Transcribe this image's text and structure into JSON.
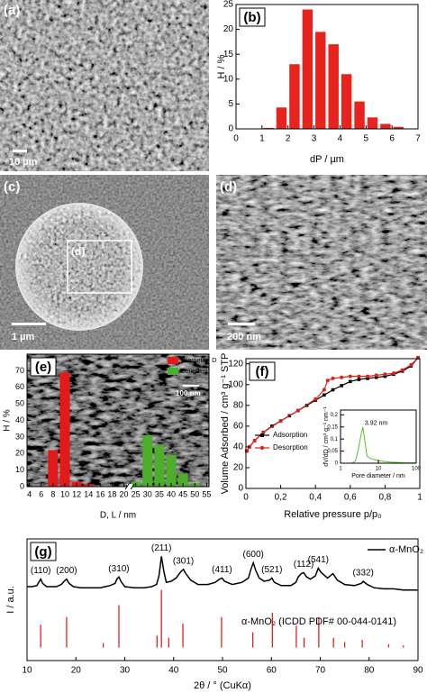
{
  "images": {
    "a": {
      "label": "(a)",
      "scale_bar": "10 µm"
    },
    "c": {
      "label": "(c)",
      "inset_label": "(d)",
      "scale_bar": "1 µm"
    },
    "d": {
      "label": "(d)",
      "scale_bar": "200 nm"
    },
    "e": {
      "scale_bar": "100 nm"
    }
  },
  "chart_data": [
    {
      "type": "histogram",
      "label": "(b)",
      "x_label": "dP / µm",
      "y_label": "H / %",
      "color": "#e8221c",
      "bins": [
        1,
        1.5,
        2,
        2.5,
        3,
        3.5,
        4,
        4.5,
        5,
        5.5,
        6,
        6.5,
        7
      ],
      "counts": [
        0.2,
        4.3,
        13,
        24,
        19.5,
        17,
        11,
        5.5,
        2.3,
        1,
        0.4,
        0
      ],
      "xlim": [
        0,
        7
      ],
      "xticks": [
        0,
        1,
        2,
        3,
        4,
        5,
        6,
        7
      ],
      "ylim": [
        0,
        25
      ],
      "yticks": [
        0,
        5,
        10,
        15,
        20,
        25
      ]
    },
    {
      "type": "bar",
      "label": "(e)",
      "x_label": "D, L / nm",
      "y_label": "H / %",
      "legend": "upper right",
      "x_break": [
        20,
        25
      ],
      "xlim": [
        3.6,
        56
      ],
      "xticks": [
        4,
        6,
        8,
        10,
        12,
        14,
        16,
        18,
        20,
        25,
        30,
        35,
        40,
        45,
        50,
        55
      ],
      "ylim": [
        0,
        80
      ],
      "yticks": [
        0,
        10,
        20,
        30,
        40,
        50,
        60,
        70
      ],
      "series": [
        {
          "name": "Diameter, D",
          "color": "#e31a1c",
          "x": [
            8,
            10,
            12,
            14
          ],
          "values": [
            22,
            69,
            3,
            1.5
          ]
        },
        {
          "name": "Length, L",
          "color": "#4cae2a",
          "x": [
            25,
            30,
            35,
            40,
            45,
            50
          ],
          "values": [
            3,
            31,
            25,
            19,
            8,
            2
          ]
        }
      ]
    },
    {
      "type": "line",
      "label": "(f)",
      "x_label": "Relative pressure p/p₀",
      "y_label": "Volume Adsorbed / cm³ g⁻¹ STP",
      "legend": "lower left",
      "xlim": [
        0,
        1
      ],
      "xticks": [
        0,
        {
          "value": 0.2,
          "label": "0,2"
        },
        {
          "value": 0.4,
          "label": "0,4"
        },
        {
          "value": 0.6,
          "label": "0,6"
        },
        {
          "value": 0.8,
          "label": "0,8"
        },
        1
      ],
      "ylim": [
        0,
        125
      ],
      "yticks": [
        0,
        20,
        40,
        60,
        80,
        100,
        120
      ],
      "series": [
        {
          "name": "Adsorption",
          "color": "#000000",
          "marker": "square",
          "x": [
            0.005,
            0.02,
            0.05,
            0.1,
            0.15,
            0.2,
            0.25,
            0.3,
            0.35,
            0.4,
            0.45,
            0.5,
            0.55,
            0.6,
            0.65,
            0.7,
            0.75,
            0.8,
            0.85,
            0.9,
            0.95,
            0.99
          ],
          "values": [
            36,
            40,
            46,
            54,
            60,
            65,
            70,
            75,
            80,
            85,
            90,
            95,
            99,
            103,
            105,
            106,
            107,
            108,
            110,
            113,
            118,
            126
          ]
        },
        {
          "name": "Desorption",
          "color": "#e0201b",
          "marker": "circle",
          "x": [
            0.99,
            0.95,
            0.9,
            0.85,
            0.8,
            0.75,
            0.7,
            0.65,
            0.6,
            0.55,
            0.5,
            0.47,
            0.45,
            0.4,
            0.3,
            0.2,
            0.1,
            0.05,
            0.02,
            0.005
          ],
          "values": [
            126,
            119,
            114,
            111,
            110,
            109,
            108,
            108,
            108,
            107,
            106,
            104,
            95,
            86,
            75,
            65,
            54,
            46,
            40,
            36
          ]
        }
      ]
    },
    {
      "type": "line",
      "x_label": "Pore diameter / nm",
      "y_label": "dV/dD / cm³ g⁻¹ nm⁻¹",
      "log_x": true,
      "xlim": [
        1,
        100
      ],
      "xticks": [
        1,
        10,
        100
      ],
      "ylim": [
        0,
        0.22
      ],
      "yticks": [
        0,
        {
          "value": 0.05,
          "label": "0,05"
        },
        {
          "value": 0.1,
          "label": "0,1"
        },
        {
          "value": 0.15,
          "label": "0,15"
        },
        {
          "value": 0.2,
          "label": "0,2"
        }
      ],
      "annotation": {
        "text": "3.92 nm",
        "x": 3.92
      },
      "series": [
        {
          "color": "#5cc02a",
          "x": [
            1.5,
            2,
            2.5,
            3,
            3.5,
            3.92,
            4.5,
            5,
            6,
            8,
            10,
            20,
            50,
            100
          ],
          "values": [
            0,
            0,
            0.01,
            0.06,
            0.12,
            0.15,
            0.08,
            0.03,
            0.02,
            0.015,
            0.01,
            0.005,
            0.002,
            0.001
          ]
        }
      ]
    },
    {
      "type": "xrd",
      "label": "(g)",
      "x_label": "2θ / ° (CuKα)",
      "y_label": "I / a.u.",
      "xlim": [
        10,
        90
      ],
      "xticks": [
        10,
        20,
        30,
        40,
        50,
        60,
        70,
        80,
        90
      ],
      "ylim": [
        -12,
        100
      ],
      "series": [
        {
          "name": "α-MnO₂",
          "color": "#000000",
          "style": "line",
          "x": [
            10,
            11,
            12,
            12.4,
            12.8,
            13.2,
            14,
            15,
            16,
            17,
            17.6,
            18.1,
            18.6,
            19.5,
            21,
            23,
            25,
            26,
            27,
            28,
            28.4,
            28.8,
            29.2,
            30,
            32,
            34,
            35.5,
            36.5,
            37,
            37.5,
            38,
            38.5,
            39.5,
            40.5,
            41.5,
            42,
            42.5,
            43.5,
            45,
            47,
            48.5,
            49.4,
            49.9,
            50.4,
            52,
            54,
            55.3,
            55.8,
            56.3,
            56.8,
            57.5,
            58.5,
            59.6,
            60.1,
            60.6,
            62,
            64,
            65,
            65.5,
            66.1,
            66.6,
            67.2,
            68,
            69,
            69.6,
            70.2,
            71.5,
            72.6,
            73.5,
            75,
            77,
            78.4,
            78.8,
            79.6,
            81,
            83,
            85,
            87,
            90
          ],
          "values": [
            56,
            56,
            57,
            60,
            63,
            59,
            56,
            56,
            56,
            58,
            61,
            63,
            59,
            56,
            55,
            55,
            55,
            56,
            57,
            59,
            63,
            65,
            61,
            56,
            55,
            55,
            56,
            58,
            66,
            84,
            70,
            60,
            61,
            64,
            70,
            72,
            68,
            62,
            58,
            58,
            60,
            63,
            64,
            61,
            58,
            60,
            64,
            72,
            78,
            71,
            64,
            61,
            62,
            64,
            60,
            57,
            57,
            60,
            65,
            68,
            69,
            65,
            63,
            66,
            73,
            69,
            64,
            68,
            62,
            58,
            57,
            59,
            61,
            58,
            55,
            54,
            54,
            53,
            53
          ]
        },
        {
          "name": "α-MnO₂ (ICDD PDF# 00-044-0141)",
          "color": "#e0201b",
          "style": "sticks",
          "x": [
            12.8,
            18.1,
            25.6,
            28.8,
            36.6,
            37.5,
            39,
            41.9,
            49.8,
            56.2,
            60.2,
            65.1,
            66.7,
            69.7,
            72.7,
            75,
            78.6,
            84,
            87
          ],
          "values": [
            21,
            28,
            4,
            39,
            11,
            53,
            9,
            22,
            28,
            14,
            32,
            20,
            9,
            28,
            9,
            5,
            7,
            3,
            2
          ]
        }
      ],
      "peaks": [
        {
          "label": "(110)",
          "x": 12.8
        },
        {
          "label": "(200)",
          "x": 18.1
        },
        {
          "label": "(310)",
          "x": 28.8
        },
        {
          "label": "(211)",
          "x": 37.5
        },
        {
          "label": "(301)",
          "x": 42
        },
        {
          "label": "(411)",
          "x": 49.9
        },
        {
          "label": "(600)",
          "x": 56.3
        },
        {
          "label": "(521)",
          "x": 60.1
        },
        {
          "label": "(112)",
          "x": 66.6
        },
        {
          "label": "(541)",
          "x": 69.6
        },
        {
          "label": "(332)",
          "x": 78.8
        }
      ]
    }
  ]
}
